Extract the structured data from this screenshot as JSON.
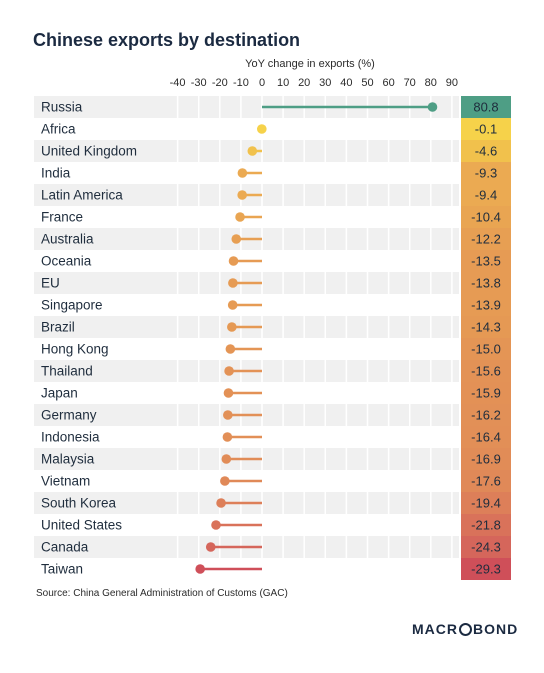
{
  "title": "Chinese exports by destination",
  "source": "Source: China General Administration of Customs (GAC)",
  "brand": {
    "before": "MACR",
    "after": "BOND"
  },
  "chart_data": {
    "type": "lollipop",
    "title": "Chinese exports by destination",
    "xlabel": "YoY change in exports (%)",
    "xlim": [
      -40,
      90
    ],
    "xticks": [
      -40,
      -30,
      -20,
      -10,
      0,
      10,
      20,
      30,
      40,
      50,
      60,
      70,
      80,
      90
    ],
    "categories": [
      "Russia",
      "Africa",
      "United Kingdom",
      "India",
      "Latin America",
      "France",
      "Australia",
      "Oceania",
      "EU",
      "Singapore",
      "Brazil",
      "Hong Kong",
      "Thailand",
      "Japan",
      "Germany",
      "Indonesia",
      "Malaysia",
      "Vietnam",
      "South Korea",
      "United States",
      "Canada",
      "Taiwan"
    ],
    "values": [
      80.8,
      -0.1,
      -4.6,
      -9.3,
      -9.4,
      -10.4,
      -12.2,
      -13.5,
      -13.8,
      -13.9,
      -14.3,
      -15.0,
      -15.6,
      -15.9,
      -16.2,
      -16.4,
      -16.9,
      -17.6,
      -19.4,
      -21.8,
      -24.3,
      -29.3
    ],
    "value_labels": [
      "80.8",
      "-0.1",
      "-4.6",
      "-9.3",
      "-9.4",
      "-10.4",
      "-12.2",
      "-13.5",
      "-13.8",
      "-13.9",
      "-14.3",
      "-15.0",
      "-15.6",
      "-15.9",
      "-16.2",
      "-16.4",
      "-16.9",
      "-17.6",
      "-19.4",
      "-21.8",
      "-24.3",
      "-29.3"
    ],
    "colors": [
      "#4e9e85",
      "#f6d24a",
      "#f1c14c",
      "#ebaa52",
      "#ebaa52",
      "#e9a552",
      "#e79f53",
      "#e69b54",
      "#e69b54",
      "#e69b54",
      "#e59954",
      "#e49555",
      "#e39256",
      "#e39156",
      "#e29057",
      "#e28f57",
      "#e18c57",
      "#e08958",
      "#dd7f59",
      "#d9725a",
      "#d5665b",
      "#cf4f59"
    ],
    "grid": true
  }
}
